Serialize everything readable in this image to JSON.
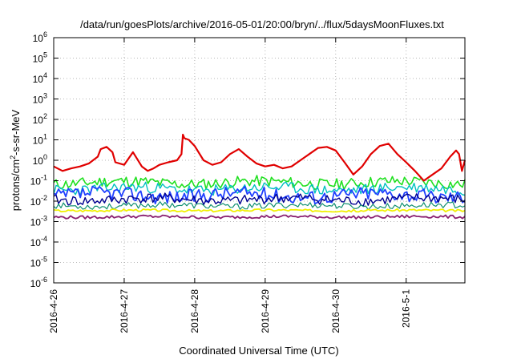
{
  "chart_data": {
    "type": "line",
    "title": "/data/run/goesPlots/archive/2016-05-01/20:00/bryn/../flux/5daysMoonFluxes.txt",
    "xlabel": "Coordinated Universal Time (UTC)",
    "ylabel_parts": [
      "protons/cm",
      "2",
      "-s-sr-MeV"
    ],
    "y_scale": "log",
    "ylim": [
      1e-06,
      1000000.0
    ],
    "y_ticks": [
      {
        "base": "10",
        "exp": "-6",
        "value": -6
      },
      {
        "base": "10",
        "exp": "-5",
        "value": -5
      },
      {
        "base": "10",
        "exp": "-4",
        "value": -4
      },
      {
        "base": "10",
        "exp": "-3",
        "value": -3
      },
      {
        "base": "10",
        "exp": "-2",
        "value": -2
      },
      {
        "base": "10",
        "exp": "-1",
        "value": -1
      },
      {
        "base": "10",
        "exp": "0",
        "value": 0
      },
      {
        "base": "10",
        "exp": "1",
        "value": 1
      },
      {
        "base": "10",
        "exp": "2",
        "value": 2
      },
      {
        "base": "10",
        "exp": "3",
        "value": 3
      },
      {
        "base": "10",
        "exp": "4",
        "value": 4
      },
      {
        "base": "10",
        "exp": "5",
        "value": 5
      },
      {
        "base": "10",
        "exp": "6",
        "value": 6
      }
    ],
    "xlim": [
      "2016-04-26",
      "2016-05-01 20:00"
    ],
    "x_ticks": [
      "2016-4-26",
      "2016-4-27",
      "2016-4-28",
      "2016-4-29",
      "2016-4-30",
      "2016-5-1"
    ],
    "grid": true,
    "legend": "none",
    "series": [
      {
        "color": "#e00000",
        "width": 2.2,
        "x": [
          "2016-04-26 00:00",
          "2016-04-26 03:00",
          "2016-04-26 06:00",
          "2016-04-26 09:00",
          "2016-04-26 12:00",
          "2016-04-26 15:00",
          "2016-04-26 16:00",
          "2016-04-26 18:00",
          "2016-04-26 20:00",
          "2016-04-26 21:00",
          "2016-04-27 00:00",
          "2016-04-27 03:00",
          "2016-04-27 06:00",
          "2016-04-27 08:00",
          "2016-04-27 10:00",
          "2016-04-27 12:00",
          "2016-04-27 15:00",
          "2016-04-27 18:00",
          "2016-04-27 19:30",
          "2016-04-27 20:00",
          "2016-04-27 20:30",
          "2016-04-27 22:00",
          "2016-04-28 00:00",
          "2016-04-28 03:00",
          "2016-04-28 06:00",
          "2016-04-28 09:00",
          "2016-04-28 12:00",
          "2016-04-28 15:00",
          "2016-04-28 18:00",
          "2016-04-28 21:00",
          "2016-04-29 00:00",
          "2016-04-29 03:00",
          "2016-04-29 06:00",
          "2016-04-29 09:00",
          "2016-04-29 12:00",
          "2016-04-29 15:00",
          "2016-04-29 18:00",
          "2016-04-29 21:00",
          "2016-04-30 00:00",
          "2016-04-30 03:00",
          "2016-04-30 06:00",
          "2016-04-30 09:00",
          "2016-04-30 12:00",
          "2016-04-30 15:00",
          "2016-04-30 18:00",
          "2016-04-30 21:00",
          "2016-05-01 00:00",
          "2016-05-01 03:00",
          "2016-05-01 06:00",
          "2016-05-01 09:00",
          "2016-05-01 12:00",
          "2016-05-01 15:00",
          "2016-05-01 17:00",
          "2016-05-01 18:00",
          "2016-05-01 19:00",
          "2016-05-01 20:00"
        ],
        "y": [
          0.5,
          0.3,
          0.4,
          0.5,
          0.7,
          1.5,
          3.5,
          4.5,
          2.5,
          0.8,
          0.6,
          2.5,
          0.5,
          0.3,
          0.4,
          0.6,
          0.8,
          1.0,
          2.0,
          18,
          12,
          10,
          5,
          1.0,
          0.6,
          0.8,
          2.0,
          3.5,
          1.5,
          0.7,
          0.5,
          0.6,
          0.4,
          0.5,
          1.0,
          2.0,
          4.0,
          4.5,
          3.0,
          0.8,
          0.2,
          0.5,
          2.0,
          5.0,
          6.5,
          2.0,
          0.8,
          0.3,
          0.1,
          0.2,
          0.4,
          1.5,
          3.0,
          2.0,
          0.3,
          1.0
        ]
      },
      {
        "color": "#20e020",
        "width": 1.6,
        "base": 0.08,
        "spread": 0.55,
        "seed": 11
      },
      {
        "color": "#00c0c0",
        "width": 1.4,
        "base": 0.04,
        "spread": 0.55,
        "seed": 23
      },
      {
        "color": "#2040ff",
        "width": 1.8,
        "base": 0.02,
        "spread": 0.7,
        "seed": 37
      },
      {
        "color": "#000090",
        "width": 1.4,
        "base": 0.012,
        "spread": 0.5,
        "seed": 41
      },
      {
        "color": "#109070",
        "width": 1.2,
        "base": 0.006,
        "spread": 0.3,
        "seed": 53
      },
      {
        "color": "#f0f000",
        "width": 1.8,
        "base": 0.0035,
        "spread": 0.12,
        "seed": 67
      },
      {
        "color": "#8a2070",
        "width": 1.8,
        "base": 0.0017,
        "spread": 0.15,
        "seed": 79
      }
    ]
  }
}
